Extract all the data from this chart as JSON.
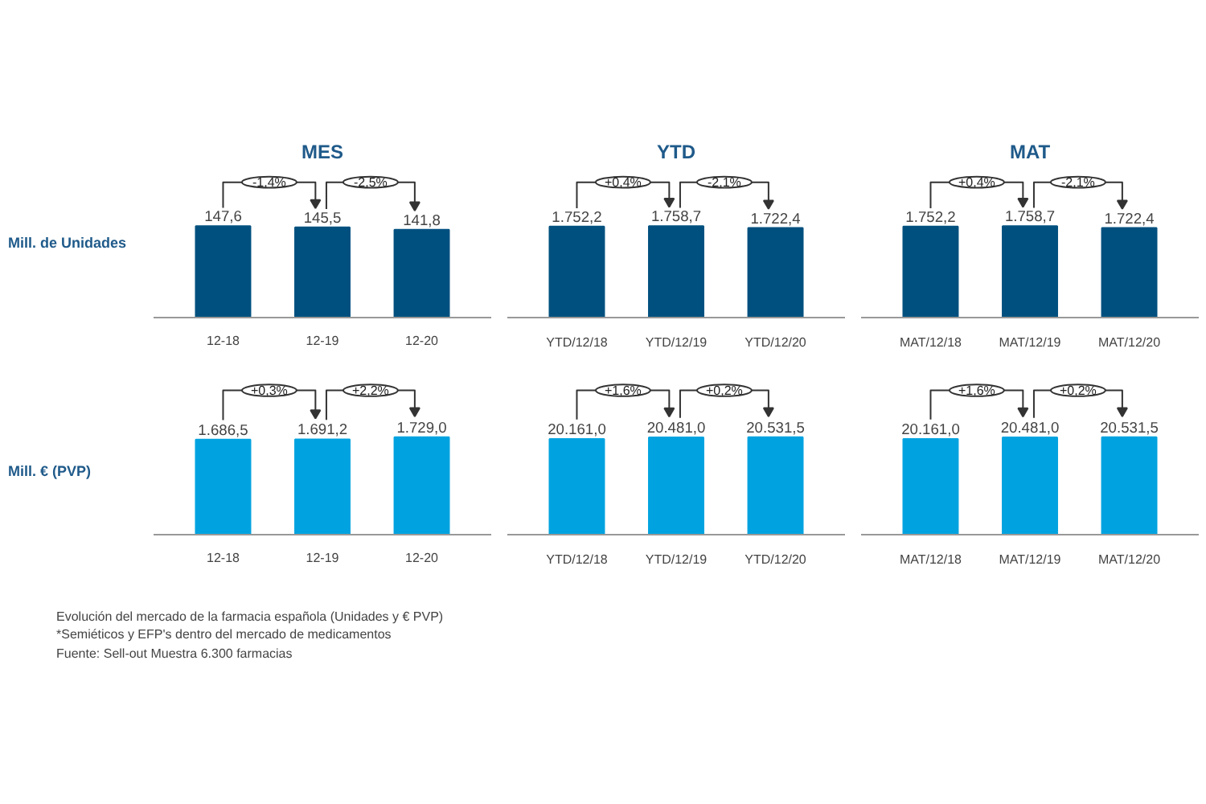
{
  "chart_data": [
    {
      "type": "bar",
      "title": "MES",
      "ylabel": "Mill. de Unidades",
      "categories": [
        "12-18",
        "12-19",
        "12-20"
      ],
      "values": [
        147.6,
        145.5,
        141.8
      ],
      "value_labels": [
        "147,6",
        "145,5",
        "141,8"
      ],
      "color": "#00507f",
      "annotations": [
        "-1,4%",
        "-2,5%"
      ]
    },
    {
      "type": "bar",
      "title": "YTD",
      "categories": [
        "YTD/12/18",
        "YTD/12/19",
        "YTD/12/20"
      ],
      "values": [
        1752.2,
        1758.7,
        1722.4
      ],
      "value_labels": [
        "1.752,2",
        "1.758,7",
        "1.722,4"
      ],
      "color": "#00507f",
      "annotations": [
        "+0,4%",
        "-2,1%"
      ]
    },
    {
      "type": "bar",
      "title": "MAT",
      "categories": [
        "MAT/12/18",
        "MAT/12/19",
        "MAT/12/20"
      ],
      "values": [
        1752.2,
        1758.7,
        1722.4
      ],
      "value_labels": [
        "1.752,2",
        "1.758,7",
        "1.722,4"
      ],
      "color": "#00507f",
      "annotations": [
        "+0,4%",
        "-2,1%"
      ]
    },
    {
      "type": "bar",
      "ylabel": "Mill. € (PVP)",
      "categories": [
        "12-18",
        "12-19",
        "12-20"
      ],
      "values": [
        1686.5,
        1691.2,
        1729.0
      ],
      "value_labels": [
        "1.686,5",
        "1.691,2",
        "1.729,0"
      ],
      "color": "#00a3e0",
      "annotations": [
        "+0,3%",
        "+2,2%"
      ]
    },
    {
      "type": "bar",
      "categories": [
        "YTD/12/18",
        "YTD/12/19",
        "YTD/12/20"
      ],
      "values": [
        20161.0,
        20481.0,
        20531.5
      ],
      "value_labels": [
        "20.161,0",
        "20.481,0",
        "20.531,5"
      ],
      "color": "#00a3e0",
      "annotations": [
        "+1,6%",
        "+0,2%"
      ]
    },
    {
      "type": "bar",
      "categories": [
        "MAT/12/18",
        "MAT/12/19",
        "MAT/12/20"
      ],
      "values": [
        20161.0,
        20481.0,
        20531.5
      ],
      "value_labels": [
        "20.161,0",
        "20.481,0",
        "20.531,5"
      ],
      "color": "#00a3e0",
      "annotations": [
        "+1,6%",
        "+0,2%"
      ]
    },
    {
      "type": "other",
      "annotations": [
        "Evolución del mercado de la farmacia española (Unidades y € PVP)",
        "*Semiéticos y EFP's dentro del mercado de medicamentos",
        "Fuente: Sell-out Muestra 6.300 farmacias"
      ]
    }
  ]
}
